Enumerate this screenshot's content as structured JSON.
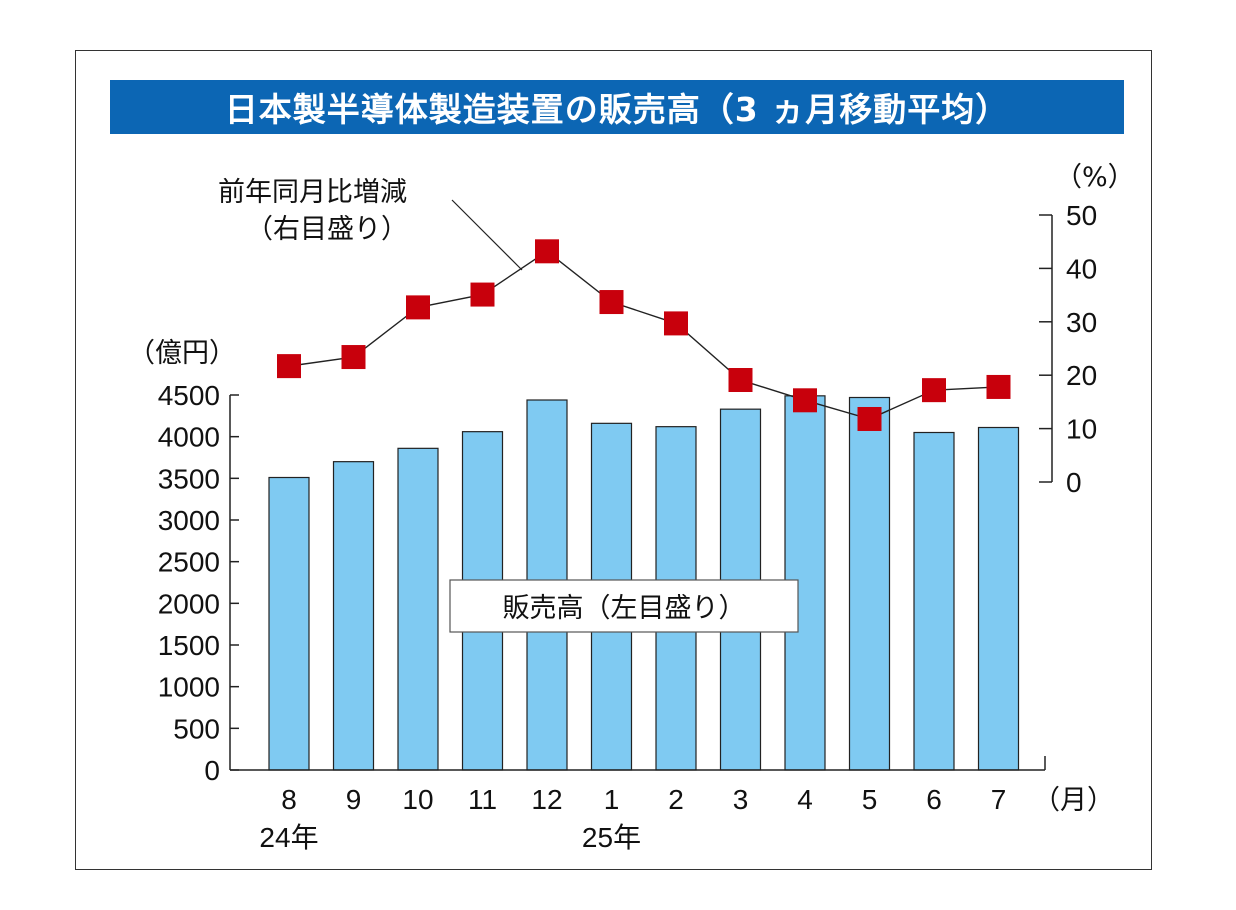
{
  "chart_data": {
    "type": "bar",
    "title": "日本製半導体製造装置の販売高（3 ヵ月移動平均）",
    "categories": [
      "8",
      "9",
      "10",
      "11",
      "12",
      "1",
      "2",
      "3",
      "4",
      "5",
      "6",
      "7"
    ],
    "year_labels": [
      {
        "label": "24年",
        "category_index": 0
      },
      {
        "label": "25年",
        "category_index": 5
      }
    ],
    "x_unit": "（月）",
    "series": [
      {
        "name": "販売高（左目盛り）",
        "type": "bar",
        "axis": "left",
        "color": "#7fcaf2",
        "values": [
          3510,
          3700,
          3860,
          4060,
          4440,
          4160,
          4120,
          4330,
          4490,
          4470,
          4050,
          4110
        ]
      },
      {
        "name": "前年同月比増減（右目盛り）",
        "name_lines": [
          "前年同月比増減",
          "（右目盛り）"
        ],
        "type": "line",
        "axis": "right",
        "color": "#c8000c",
        "values": [
          21.7,
          23.4,
          32.7,
          35.1,
          43.2,
          33.7,
          29.7,
          19.1,
          15.3,
          11.8,
          17.2,
          17.8
        ]
      }
    ],
    "y_left": {
      "unit": "（億円）",
      "ylim": [
        0,
        4500
      ],
      "ticks": [
        "0",
        "500",
        "1000",
        "1500",
        "2000",
        "2500",
        "3000",
        "3500",
        "4000",
        "4500"
      ]
    },
    "y_right": {
      "unit": "（%）",
      "ylim": [
        0,
        50
      ],
      "ticks": [
        "0",
        "10",
        "20",
        "30",
        "40",
        "50"
      ]
    },
    "grid": false
  }
}
